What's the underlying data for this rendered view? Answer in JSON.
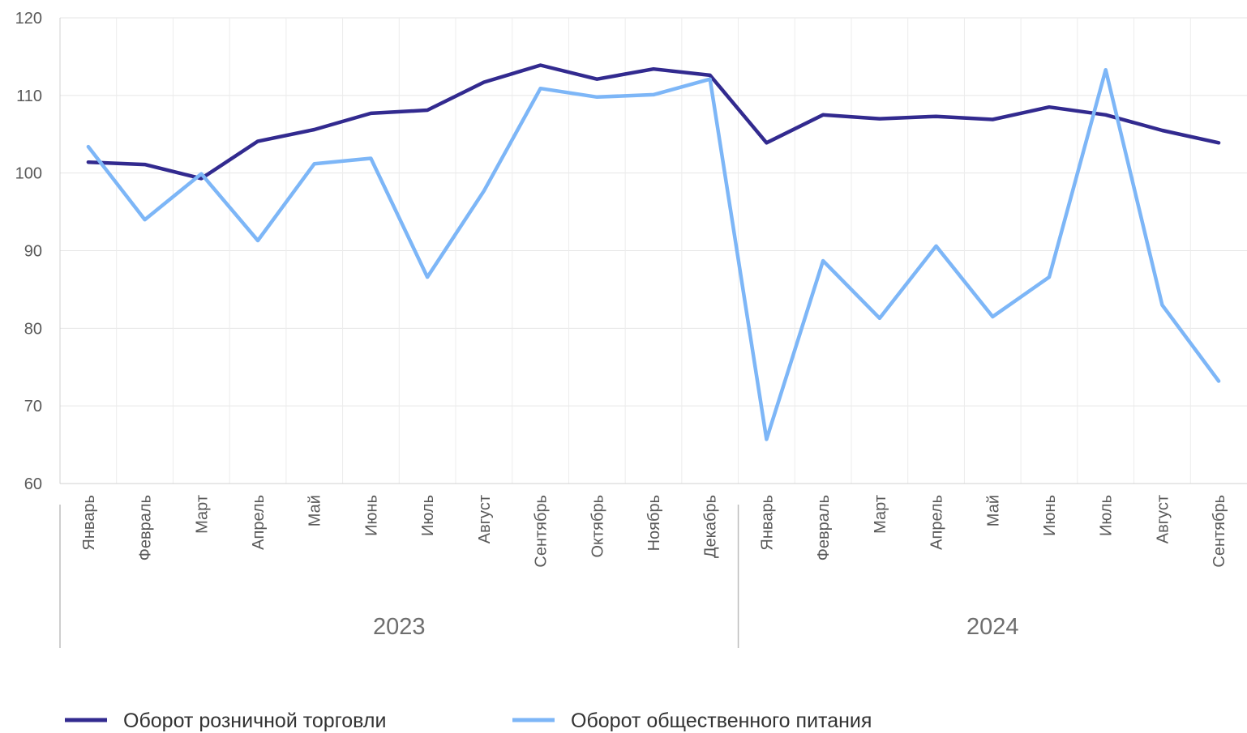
{
  "chart_data": {
    "type": "line",
    "title": "",
    "xlabel": "",
    "ylabel": "",
    "ylim": [
      60,
      120
    ],
    "yticks": [
      60,
      70,
      80,
      90,
      100,
      110,
      120
    ],
    "grid": true,
    "legend_position": "bottom",
    "categories": [
      {
        "month": "Январь",
        "year": "2023"
      },
      {
        "month": "Февраль",
        "year": "2023"
      },
      {
        "month": "Март",
        "year": "2023"
      },
      {
        "month": "Апрель",
        "year": "2023"
      },
      {
        "month": "Май",
        "year": "2023"
      },
      {
        "month": "Июнь",
        "year": "2023"
      },
      {
        "month": "Июль",
        "year": "2023"
      },
      {
        "month": "Август",
        "year": "2023"
      },
      {
        "month": "Сентябрь",
        "year": "2023"
      },
      {
        "month": "Октябрь",
        "year": "2023"
      },
      {
        "month": "Ноябрь",
        "year": "2023"
      },
      {
        "month": "Декабрь",
        "year": "2023"
      },
      {
        "month": "Январь",
        "year": "2024"
      },
      {
        "month": "Февраль",
        "year": "2024"
      },
      {
        "month": "Март",
        "year": "2024"
      },
      {
        "month": "Апрель",
        "year": "2024"
      },
      {
        "month": "Май",
        "year": "2024"
      },
      {
        "month": "Июнь",
        "year": "2024"
      },
      {
        "month": "Июль",
        "year": "2024"
      },
      {
        "month": "Август",
        "year": "2024"
      },
      {
        "month": "Сентябрь",
        "year": "2024"
      }
    ],
    "year_groups": [
      {
        "label": "2023",
        "count": 12
      },
      {
        "label": "2024",
        "count": 9
      }
    ],
    "series": [
      {
        "name": "Оборот розничной торговли",
        "color": "#322a8f",
        "values": [
          101.4,
          101.1,
          99.3,
          104.1,
          105.6,
          107.7,
          108.1,
          111.7,
          113.9,
          112.1,
          113.4,
          112.6,
          103.9,
          107.5,
          107.0,
          107.3,
          106.9,
          108.5,
          107.5,
          105.5,
          103.9
        ]
      },
      {
        "name": "Оборот общественного питания",
        "color": "#7db6f7",
        "values": [
          103.4,
          94.0,
          99.9,
          91.3,
          101.2,
          101.9,
          86.6,
          97.7,
          110.9,
          109.8,
          110.1,
          112.1,
          65.7,
          88.7,
          81.3,
          90.6,
          81.5,
          86.6,
          113.3,
          83.0,
          73.2
        ]
      }
    ]
  }
}
